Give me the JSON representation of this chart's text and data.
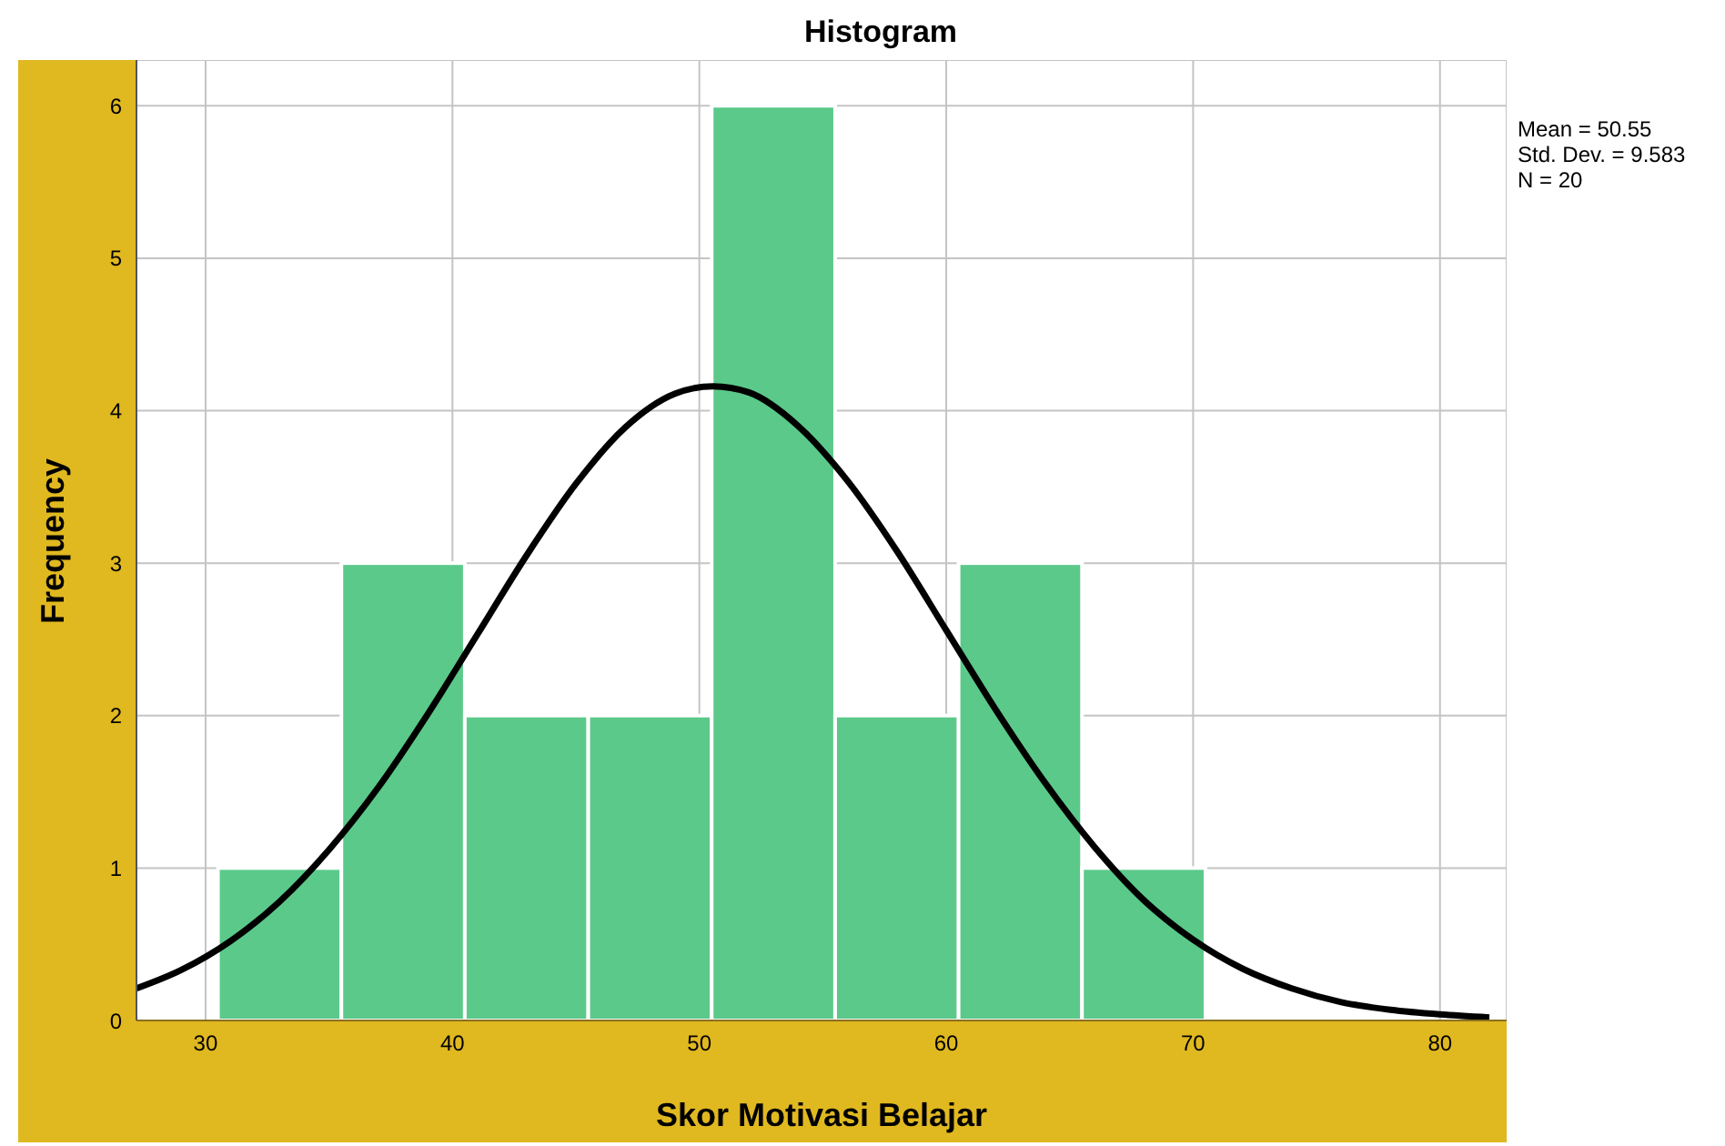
{
  "chart_data": {
    "type": "histogram",
    "title": "Histogram",
    "xlabel": "Skor Motivasi Belajar",
    "ylabel": "Frequency",
    "bins": [
      30.5,
      35.5,
      40.5,
      45.5,
      50.5,
      55.5,
      60.5,
      65.5,
      70.5
    ],
    "values": [
      1,
      3,
      2,
      2,
      6,
      2,
      3,
      1
    ],
    "color": "#5bc98a",
    "series": [
      {
        "type": "line",
        "color": "#000000",
        "x": [
          27.2,
          29,
          31,
          33,
          35,
          37,
          39,
          41,
          43,
          45,
          47,
          49,
          50.55,
          52,
          54,
          56,
          58,
          60,
          62,
          64,
          66,
          68,
          70,
          72,
          74,
          76,
          78,
          80,
          82
        ],
        "values": [
          0.21,
          0.33,
          0.52,
          0.78,
          1.12,
          1.53,
          2.01,
          2.53,
          3.05,
          3.52,
          3.89,
          4.11,
          4.16,
          4.12,
          3.9,
          3.54,
          3.08,
          2.56,
          2.04,
          1.56,
          1.14,
          0.79,
          0.53,
          0.34,
          0.21,
          0.12,
          0.07,
          0.04,
          0.02
        ]
      }
    ],
    "xlim": [
      27.2,
      82.7
    ],
    "xticks": [
      30,
      40,
      50,
      60,
      70,
      80
    ],
    "ylim": [
      0,
      6.3
    ],
    "yticks": [
      0,
      1,
      2,
      3,
      4,
      5,
      6
    ],
    "grid": true,
    "annotations": [
      "Mean = 50.55",
      "Std. Dev. = 9.583",
      "N = 20"
    ]
  }
}
